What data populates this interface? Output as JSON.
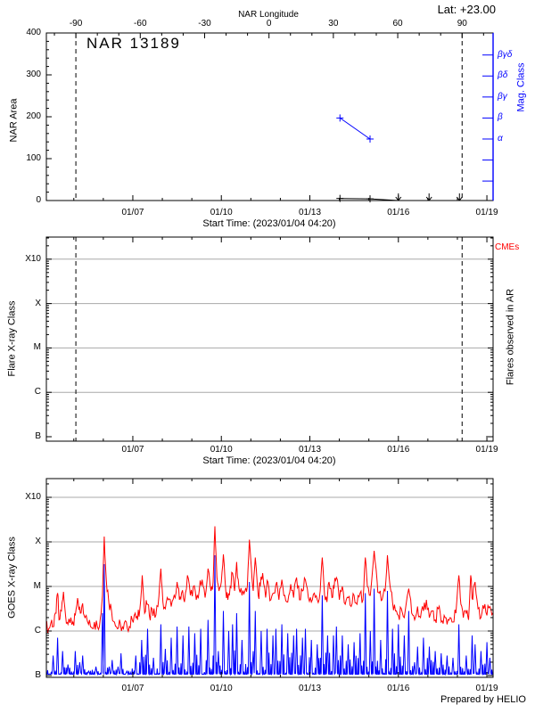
{
  "colors": {
    "series_red": "#ff0000",
    "series_blue": "#0000ff",
    "grid_grey": "#a8a8a8",
    "frame_black": "#000000",
    "background": "#ffffff"
  },
  "credit": "Prepared by HELIO",
  "time_axis": {
    "xlabel": "Start Time: (2023/01/04 04:20)",
    "ticks": [
      "01/07",
      "01/10",
      "01/13",
      "01/16",
      "01/19"
    ],
    "tick_t": [
      7,
      10,
      13,
      16,
      19
    ],
    "minor_step_days": 1,
    "t_range": [
      4.07,
      19.21
    ]
  },
  "chart_data": [
    {
      "id": "nar_area_panel",
      "type": "line",
      "title": "NAR 13189",
      "lat_label": "Lat: +23.00",
      "top_axis": {
        "label": "NAR Longitude",
        "ticks": [
          -90,
          -60,
          -30,
          0,
          30,
          60,
          90
        ],
        "minor_step_deg": 10,
        "t_at_minus90": 5.07,
        "t_at_plus90": 18.16
      },
      "ylabel": "NAR Area",
      "ylim": [
        0,
        400
      ],
      "yticks": [
        0,
        100,
        200,
        300,
        400
      ],
      "y_minor_step": 20,
      "right_axis": {
        "label": "Mag. Class",
        "tick_labels": [
          "βγδ",
          "βδ",
          "βγ",
          "β",
          "α",
          "",
          ""
        ]
      },
      "dashed_lines_t": [
        5.07,
        18.16
      ],
      "series": [
        {
          "name": "nar_area",
          "color": "#000000",
          "x": [
            14.02,
            15.04,
            16.0,
            17.04,
            18.07
          ],
          "y": [
            5,
            4,
            0,
            0,
            0
          ],
          "marker": [
            "plus",
            "plus",
            "down-arrow",
            "down-arrow",
            "down-arrow"
          ],
          "line_points": 3
        },
        {
          "name": "mag_class",
          "color": "#0000ff",
          "x": [
            14.02,
            15.04
          ],
          "class_labels": [
            "β",
            "α"
          ],
          "level_index": [
            3,
            4
          ]
        }
      ]
    },
    {
      "id": "flare_panel",
      "type": "line",
      "ylabel": "Flare X-ray Class",
      "ytick_labels": [
        "X10",
        "X",
        "M",
        "C",
        "B"
      ],
      "grid_levels": [
        -6,
        -5,
        -4,
        -3
      ],
      "right_label_top": "CMEs",
      "right_label": "Flares observed in AR",
      "dashed_lines_t": [
        5.07,
        18.16
      ],
      "series": []
    },
    {
      "id": "goes_xray_panel",
      "type": "line",
      "ylabel": "GOES X-ray Class",
      "ytick_labels": [
        "X10",
        "X",
        "M",
        "C",
        "B"
      ],
      "grid_levels": [
        -6,
        -5,
        -4,
        -3
      ],
      "ylim_log": [
        -7.04,
        -2.58
      ],
      "series": [
        {
          "name": "goes_long",
          "color": "#ff0000",
          "noise_amp": 0.16,
          "x": [
            4.05,
            4.15,
            4.25,
            4.32,
            4.4,
            4.45,
            4.5,
            4.58,
            4.65,
            4.72,
            4.8,
            4.9,
            5.0,
            5.08,
            5.15,
            5.22,
            5.3,
            5.38,
            5.5,
            5.6,
            5.7,
            5.8,
            5.9,
            5.97,
            6.03,
            6.1,
            6.18,
            6.28,
            6.38,
            6.48,
            6.58,
            6.68,
            6.78,
            6.88,
            6.98,
            7.08,
            7.16,
            7.24,
            7.32,
            7.4,
            7.48,
            7.56,
            7.65,
            7.75,
            7.85,
            7.95,
            8.02,
            8.1,
            8.2,
            8.3,
            8.4,
            8.5,
            8.58,
            8.65,
            8.75,
            8.85,
            8.95,
            9.05,
            9.15,
            9.25,
            9.35,
            9.45,
            9.55,
            9.65,
            9.72,
            9.78,
            9.85,
            9.92,
            10.0,
            10.07,
            10.15,
            10.22,
            10.3,
            10.38,
            10.45,
            10.52,
            10.6,
            10.7,
            10.8,
            10.88,
            10.95,
            11.02,
            11.08,
            11.15,
            11.25,
            11.32,
            11.4,
            11.5,
            11.58,
            11.68,
            11.78,
            11.88,
            11.95,
            12.05,
            12.15,
            12.25,
            12.35,
            12.45,
            12.55,
            12.65,
            12.75,
            12.85,
            12.95,
            13.05,
            13.15,
            13.25,
            13.35,
            13.42,
            13.5,
            13.58,
            13.65,
            13.75,
            13.82,
            13.9,
            14.0,
            14.1,
            14.2,
            14.3,
            14.4,
            14.5,
            14.6,
            14.7,
            14.8,
            14.88,
            14.95,
            15.05,
            15.18,
            15.28,
            15.35,
            15.45,
            15.55,
            15.63,
            15.72,
            15.8,
            15.9,
            16.0,
            16.1,
            16.2,
            16.35,
            16.45,
            16.55,
            16.65,
            16.75,
            16.85,
            16.95,
            17.05,
            17.15,
            17.25,
            17.35,
            17.45,
            17.55,
            17.65,
            17.75,
            17.85,
            17.95,
            18.05,
            18.12,
            18.2,
            18.3,
            18.38,
            18.45,
            18.52,
            18.6,
            18.7,
            18.8,
            18.9,
            19.0,
            19.1,
            19.2,
            19.3,
            19.37
          ],
          "y": [
            -5.9,
            -5.95,
            -5.75,
            -5.9,
            -5.6,
            -5.15,
            -5.75,
            -5.55,
            -5.12,
            -5.65,
            -5.85,
            -5.7,
            -5.88,
            -5.5,
            -5.35,
            -5.6,
            -5.38,
            -5.7,
            -5.85,
            -5.92,
            -5.8,
            -5.9,
            -5.7,
            -5.2,
            -3.88,
            -4.85,
            -5.3,
            -5.55,
            -5.8,
            -5.95,
            -5.85,
            -5.95,
            -5.8,
            -5.9,
            -5.75,
            -5.6,
            -5.75,
            -5.5,
            -4.75,
            -5.6,
            -5.4,
            -5.65,
            -5.5,
            -5.7,
            -5.45,
            -4.6,
            -5.35,
            -5.5,
            -5.3,
            -5.45,
            -5.2,
            -4.9,
            -5.3,
            -5.15,
            -5.35,
            -4.75,
            -5.2,
            -5.0,
            -5.3,
            -5.1,
            -4.85,
            -5.25,
            -4.6,
            -5.1,
            -4.9,
            -3.65,
            -4.8,
            -5.1,
            -4.9,
            -4.28,
            -5.1,
            -5.3,
            -5.0,
            -4.7,
            -5.1,
            -4.45,
            -5.05,
            -5.2,
            -5.1,
            -5.0,
            -3.95,
            -4.6,
            -5.1,
            -4.35,
            -5.2,
            -5.0,
            -4.7,
            -5.25,
            -4.9,
            -5.3,
            -5.15,
            -4.9,
            -5.3,
            -4.85,
            -5.2,
            -5.35,
            -4.95,
            -5.25,
            -4.8,
            -5.3,
            -5.1,
            -4.85,
            -5.25,
            -5.35,
            -5.15,
            -5.3,
            -5.1,
            -4.35,
            -5.2,
            -5.35,
            -4.9,
            -5.25,
            -5.05,
            -4.8,
            -5.3,
            -5.0,
            -5.4,
            -5.25,
            -5.45,
            -5.2,
            -5.4,
            -5.15,
            -5.3,
            -4.35,
            -5.0,
            -5.2,
            -4.2,
            -4.9,
            -5.15,
            -5.3,
            -5.1,
            -4.3,
            -5.0,
            -5.35,
            -5.55,
            -5.65,
            -5.5,
            -5.7,
            -5.05,
            -5.6,
            -5.75,
            -5.45,
            -5.7,
            -5.55,
            -5.3,
            -5.7,
            -5.55,
            -5.75,
            -5.5,
            -5.8,
            -5.65,
            -5.85,
            -5.7,
            -5.8,
            -5.6,
            -4.75,
            -5.4,
            -5.7,
            -5.6,
            -5.75,
            -4.75,
            -5.3,
            -4.9,
            -5.5,
            -5.7,
            -5.5,
            -5.65,
            -5.45,
            -5.6,
            -5.5,
            -5.55
          ]
        },
        {
          "name": "goes_short",
          "color": "#0000ff",
          "spiky": true,
          "floor": -6.97,
          "grass_amp": 0.45,
          "x": [
            4.05,
            4.3,
            4.45,
            4.62,
            4.8,
            5.05,
            5.2,
            5.3,
            5.5,
            5.75,
            5.97,
            6.03,
            6.2,
            6.3,
            6.5,
            6.6,
            6.8,
            7.1,
            7.3,
            7.5,
            7.7,
            7.95,
            8.1,
            8.3,
            8.5,
            8.7,
            8.9,
            9.1,
            9.3,
            9.55,
            9.78,
            9.9,
            10.07,
            10.25,
            10.38,
            10.52,
            10.7,
            10.95,
            11.08,
            11.15,
            11.35,
            11.55,
            11.75,
            11.85,
            12.05,
            12.25,
            12.45,
            12.55,
            12.75,
            12.85,
            13.05,
            13.25,
            13.42,
            13.6,
            13.8,
            13.9,
            14.1,
            14.3,
            14.5,
            14.7,
            14.88,
            15.05,
            15.18,
            15.4,
            15.63,
            15.8,
            16.0,
            16.2,
            16.35,
            16.55,
            16.65,
            16.85,
            17.05,
            17.25,
            17.45,
            17.65,
            17.85,
            18.05,
            18.3,
            18.5,
            18.6,
            18.8,
            19.0,
            19.1,
            19.3,
            19.37
          ],
          "y": [
            -6.97,
            -6.55,
            -6.15,
            -6.45,
            -6.75,
            -6.45,
            -6.7,
            -6.55,
            -6.9,
            -6.8,
            -5.6,
            -4.5,
            -6.8,
            -6.65,
            -6.8,
            -6.5,
            -6.9,
            -6.55,
            -6.2,
            -5.95,
            -6.6,
            -5.85,
            -6.4,
            -6.15,
            -5.9,
            -6.1,
            -5.9,
            -6.05,
            -5.95,
            -5.75,
            -4.3,
            -6.45,
            -5.55,
            -6.0,
            -5.85,
            -5.6,
            -6.2,
            -4.9,
            -6.45,
            -5.55,
            -6.0,
            -5.95,
            -6.1,
            -5.95,
            -5.85,
            -6.05,
            -6.1,
            -5.95,
            -6.15,
            -5.95,
            -6.2,
            -6.3,
            -5.2,
            -6.1,
            -6.1,
            -5.9,
            -6.1,
            -6.3,
            -6.25,
            -6.05,
            -5.15,
            -6.0,
            -5.05,
            -6.2,
            -5.1,
            -5.95,
            -5.85,
            -6.1,
            -5.55,
            -6.7,
            -6.35,
            -6.15,
            -6.35,
            -6.45,
            -6.5,
            -6.55,
            -6.6,
            -5.85,
            -6.55,
            -6.1,
            -6.3,
            -6.45,
            -6.25,
            -6.6,
            -6.5,
            -6.8
          ]
        }
      ]
    }
  ]
}
